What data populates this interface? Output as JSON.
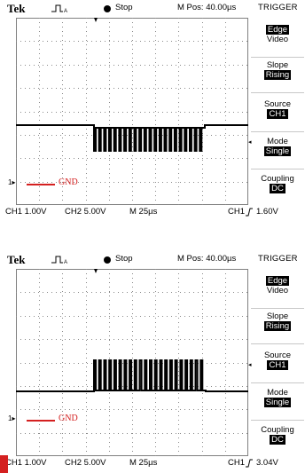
{
  "scopes": [
    {
      "brand": "Tek",
      "status": "Stop",
      "mpos": "M Pos: 40.00µs",
      "menu_title": "TRIGGER",
      "menu": [
        {
          "label": "Edge",
          "value": "Video",
          "highlight": "label"
        },
        {
          "label": "Slope",
          "value": "Rising",
          "highlight": "value"
        },
        {
          "label": "Source",
          "value": "CH1",
          "highlight": "value"
        },
        {
          "label": "Mode",
          "value": "Single",
          "highlight": "value"
        },
        {
          "label": "Coupling",
          "value": "DC",
          "highlight": "value"
        }
      ],
      "gnd": "GND",
      "ch1": "CH1 1.00V",
      "ch2": "CH2 5.00V",
      "timebase": "M 25µs",
      "trig_src": "CH1",
      "trig_slope_icon": "rising-edge-icon",
      "trig_level": "1.60V"
    },
    {
      "brand": "Tek",
      "status": "Stop",
      "mpos": "M Pos: 40.00µs",
      "menu_title": "TRIGGER",
      "menu": [
        {
          "label": "Edge",
          "value": "Video",
          "highlight": "label"
        },
        {
          "label": "Slope",
          "value": "Rising",
          "highlight": "value"
        },
        {
          "label": "Source",
          "value": "CH1",
          "highlight": "value"
        },
        {
          "label": "Mode",
          "value": "Single",
          "highlight": "value"
        },
        {
          "label": "Coupling",
          "value": "DC",
          "highlight": "value"
        }
      ],
      "gnd": "GND",
      "ch1": "CH1 1.00V",
      "ch2": "CH2 5.00V",
      "timebase": "M 25µs",
      "trig_src": "CH1",
      "trig_slope_icon": "rising-edge-icon",
      "trig_level": "3.04V"
    }
  ],
  "colors": {
    "gnd": "#d42020",
    "trace": "#000000",
    "grid": "#808080"
  }
}
